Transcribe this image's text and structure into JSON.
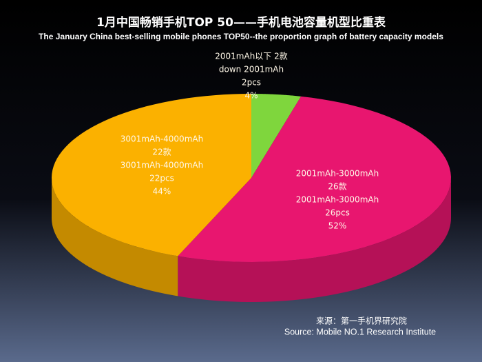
{
  "chart_data": {
    "type": "pie",
    "title": "1月中国畅销手机TOP 50——手机电池容量机型比重表",
    "subtitle": "The  January China best-selling mobile phones TOP50--the proportion graph of battery capacity models",
    "label_lines": [
      [
        "2001mAh以下 2款",
        "down 2001mAh"
      ],
      [
        "2001mAh-3000mAh",
        "26款",
        "2001mAh-3000mAh"
      ],
      [
        "3001mAh-4000mAh",
        "22款",
        "3001mAh-4000mAh"
      ]
    ],
    "count_labels": [
      "2pcs",
      "26pcs",
      "22pcs"
    ],
    "values": [
      4,
      52,
      44
    ],
    "value_labels": [
      "4%",
      "52%",
      "44%"
    ],
    "colors": [
      "#7fd63d",
      "#e8166f",
      "#fbb100"
    ],
    "source": [
      "来源：第一手机界研究院",
      "Source: Mobile NO.1 Research Institute"
    ]
  }
}
